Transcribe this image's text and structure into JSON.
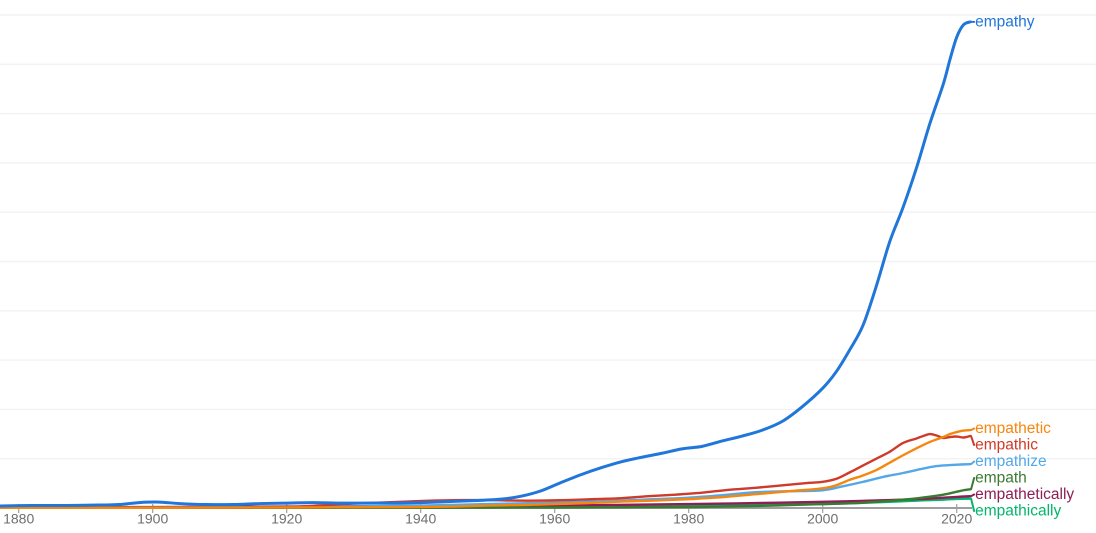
{
  "chart_data": {
    "type": "line",
    "title": "",
    "xlabel": "",
    "ylabel": "",
    "grid": "horizontal gridlines only, very faint, unlabeled",
    "legend_position": "end-of-line labels at right edge",
    "x_axis": {
      "tick_labels": [
        "1880",
        "1900",
        "1920",
        "1940",
        "1960",
        "1980",
        "2000",
        "2020"
      ],
      "tick_years": [
        1880,
        1900,
        1920,
        1940,
        1960,
        1980,
        2000,
        2020
      ],
      "range": [
        1877,
        2022
      ]
    },
    "y_axis": {
      "range": [
        0,
        10
      ],
      "gridline_values": [
        1,
        2,
        3,
        4,
        5,
        6,
        7,
        8,
        9,
        10
      ],
      "note": "y-axis has no visible labels in the screenshot; values are expressed in gridline-spacing units (1.0 = one gridline above the baseline)"
    },
    "series": [
      {
        "name": "empathy",
        "color": "#2076d9",
        "points": [
          [
            1877,
            0.04
          ],
          [
            1882,
            0.05
          ],
          [
            1887,
            0.05
          ],
          [
            1892,
            0.06
          ],
          [
            1895,
            0.07
          ],
          [
            1898,
            0.11
          ],
          [
            1901,
            0.12
          ],
          [
            1904,
            0.09
          ],
          [
            1908,
            0.07
          ],
          [
            1912,
            0.07
          ],
          [
            1916,
            0.09
          ],
          [
            1920,
            0.1
          ],
          [
            1924,
            0.11
          ],
          [
            1928,
            0.1
          ],
          [
            1932,
            0.1
          ],
          [
            1936,
            0.1
          ],
          [
            1940,
            0.11
          ],
          [
            1944,
            0.13
          ],
          [
            1948,
            0.15
          ],
          [
            1952,
            0.18
          ],
          [
            1955,
            0.24
          ],
          [
            1958,
            0.35
          ],
          [
            1961,
            0.52
          ],
          [
            1964,
            0.68
          ],
          [
            1967,
            0.82
          ],
          [
            1970,
            0.94
          ],
          [
            1973,
            1.03
          ],
          [
            1976,
            1.11
          ],
          [
            1979,
            1.2
          ],
          [
            1982,
            1.25
          ],
          [
            1985,
            1.36
          ],
          [
            1988,
            1.46
          ],
          [
            1991,
            1.58
          ],
          [
            1994,
            1.76
          ],
          [
            1997,
            2.06
          ],
          [
            2000,
            2.43
          ],
          [
            2002,
            2.76
          ],
          [
            2004,
            3.2
          ],
          [
            2006,
            3.7
          ],
          [
            2008,
            4.5
          ],
          [
            2010,
            5.4
          ],
          [
            2012,
            6.1
          ],
          [
            2014,
            6.9
          ],
          [
            2016,
            7.8
          ],
          [
            2018,
            8.6
          ],
          [
            2019,
            9.1
          ],
          [
            2020,
            9.55
          ],
          [
            2021,
            9.8
          ],
          [
            2022,
            9.86
          ]
        ]
      },
      {
        "name": "empathetic",
        "color": "#f5870f",
        "points": [
          [
            1877,
            0.005
          ],
          [
            1900,
            0.005
          ],
          [
            1920,
            0.01
          ],
          [
            1930,
            0.015
          ],
          [
            1940,
            0.02
          ],
          [
            1945,
            0.03
          ],
          [
            1950,
            0.05
          ],
          [
            1955,
            0.06
          ],
          [
            1960,
            0.08
          ],
          [
            1965,
            0.1
          ],
          [
            1970,
            0.13
          ],
          [
            1975,
            0.15
          ],
          [
            1980,
            0.18
          ],
          [
            1985,
            0.22
          ],
          [
            1990,
            0.28
          ],
          [
            1995,
            0.34
          ],
          [
            2000,
            0.4
          ],
          [
            2002,
            0.46
          ],
          [
            2004,
            0.57
          ],
          [
            2006,
            0.66
          ],
          [
            2008,
            0.77
          ],
          [
            2010,
            0.92
          ],
          [
            2012,
            1.07
          ],
          [
            2014,
            1.21
          ],
          [
            2016,
            1.34
          ],
          [
            2018,
            1.44
          ],
          [
            2019,
            1.5
          ],
          [
            2020,
            1.54
          ],
          [
            2021,
            1.57
          ],
          [
            2022,
            1.58
          ]
        ]
      },
      {
        "name": "empathic",
        "color": "#cf3a2a",
        "points": [
          [
            1877,
            0.005
          ],
          [
            1910,
            0.01
          ],
          [
            1918,
            0.02
          ],
          [
            1922,
            0.03
          ],
          [
            1926,
            0.06
          ],
          [
            1930,
            0.09
          ],
          [
            1934,
            0.11
          ],
          [
            1938,
            0.13
          ],
          [
            1942,
            0.15
          ],
          [
            1946,
            0.16
          ],
          [
            1950,
            0.16
          ],
          [
            1954,
            0.15
          ],
          [
            1958,
            0.15
          ],
          [
            1962,
            0.16
          ],
          [
            1966,
            0.18
          ],
          [
            1970,
            0.2
          ],
          [
            1974,
            0.24
          ],
          [
            1978,
            0.27
          ],
          [
            1982,
            0.31
          ],
          [
            1986,
            0.37
          ],
          [
            1990,
            0.41
          ],
          [
            1994,
            0.46
          ],
          [
            1998,
            0.51
          ],
          [
            2000,
            0.53
          ],
          [
            2002,
            0.59
          ],
          [
            2004,
            0.72
          ],
          [
            2006,
            0.86
          ],
          [
            2008,
            1.0
          ],
          [
            2010,
            1.14
          ],
          [
            2012,
            1.32
          ],
          [
            2014,
            1.41
          ],
          [
            2015,
            1.46
          ],
          [
            2016,
            1.5
          ],
          [
            2017,
            1.47
          ],
          [
            2018,
            1.42
          ],
          [
            2019,
            1.44
          ],
          [
            2020,
            1.45
          ],
          [
            2021,
            1.43
          ],
          [
            2022,
            1.46
          ]
        ]
      },
      {
        "name": "empathize",
        "color": "#54a8e8",
        "points": [
          [
            1877,
            0.005
          ],
          [
            1900,
            0.01
          ],
          [
            1910,
            0.015
          ],
          [
            1920,
            0.02
          ],
          [
            1930,
            0.03
          ],
          [
            1940,
            0.05
          ],
          [
            1950,
            0.08
          ],
          [
            1960,
            0.11
          ],
          [
            1965,
            0.13
          ],
          [
            1970,
            0.15
          ],
          [
            1975,
            0.18
          ],
          [
            1980,
            0.21
          ],
          [
            1985,
            0.26
          ],
          [
            1990,
            0.32
          ],
          [
            1995,
            0.34
          ],
          [
            2000,
            0.36
          ],
          [
            2003,
            0.44
          ],
          [
            2006,
            0.53
          ],
          [
            2009,
            0.63
          ],
          [
            2012,
            0.71
          ],
          [
            2015,
            0.8
          ],
          [
            2017,
            0.85
          ],
          [
            2019,
            0.87
          ],
          [
            2021,
            0.885
          ],
          [
            2022,
            0.89
          ]
        ]
      },
      {
        "name": "empath",
        "color": "#3b7a33",
        "points": [
          [
            1877,
            0.003
          ],
          [
            1940,
            0.005
          ],
          [
            1960,
            0.01
          ],
          [
            1970,
            0.015
          ],
          [
            1980,
            0.02
          ],
          [
            1985,
            0.03
          ],
          [
            1990,
            0.04
          ],
          [
            1995,
            0.06
          ],
          [
            2000,
            0.08
          ],
          [
            2005,
            0.1
          ],
          [
            2010,
            0.145
          ],
          [
            2013,
            0.18
          ],
          [
            2016,
            0.23
          ],
          [
            2018,
            0.27
          ],
          [
            2020,
            0.33
          ],
          [
            2021,
            0.36
          ],
          [
            2022,
            0.38
          ]
        ]
      },
      {
        "name": "empathetically",
        "color": "#8e1e55",
        "points": [
          [
            1877,
            0.01
          ],
          [
            1900,
            0.02
          ],
          [
            1920,
            0.03
          ],
          [
            1940,
            0.04
          ],
          [
            1960,
            0.05
          ],
          [
            1980,
            0.08
          ],
          [
            1990,
            0.1
          ],
          [
            2000,
            0.125
          ],
          [
            2005,
            0.14
          ],
          [
            2010,
            0.16
          ],
          [
            2015,
            0.185
          ],
          [
            2018,
            0.21
          ],
          [
            2020,
            0.225
          ],
          [
            2022,
            0.24
          ]
        ]
      },
      {
        "name": "empathically",
        "color": "#05b56d",
        "points": [
          [
            1877,
            0.005
          ],
          [
            1900,
            0.01
          ],
          [
            1920,
            0.02
          ],
          [
            1940,
            0.025
          ],
          [
            1960,
            0.03
          ],
          [
            1980,
            0.05
          ],
          [
            1990,
            0.065
          ],
          [
            2000,
            0.08
          ],
          [
            2005,
            0.1
          ],
          [
            2010,
            0.125
          ],
          [
            2015,
            0.155
          ],
          [
            2018,
            0.17
          ],
          [
            2020,
            0.185
          ],
          [
            2022,
            0.19
          ]
        ]
      }
    ]
  },
  "colors": {
    "background": "#ffffff",
    "axis_line": "#9e9e9e",
    "tick_mark": "#9e9e9e",
    "tick_text": "#6e6e6e",
    "gridline": "#f2f2f2"
  }
}
